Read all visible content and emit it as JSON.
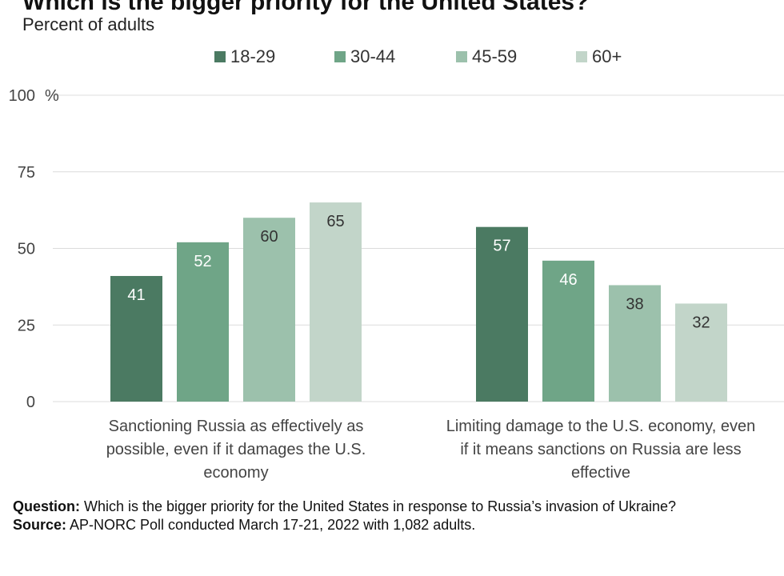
{
  "title": "Which is the bigger priority for the United States?",
  "subtitle": "Percent of adults",
  "colors": {
    "18-29": "#4b7a62",
    "30-44": "#6fa587",
    "45-59": "#9cc1ac",
    "60+": "#c2d5c9",
    "grid": "#dcdcdc",
    "axis_text": "#444444"
  },
  "chart_data": {
    "type": "bar",
    "categories": [
      "Sanctioning Russia as effectively as possible, even if it damages the U.S. economy",
      "Limiting damage to the U.S. economy, even if it means sanctions on Russia are less effective"
    ],
    "category_lines": [
      [
        "Sanctioning Russia as effectively as",
        "possible, even if it damages the U.S.",
        "economy"
      ],
      [
        "Limiting damage to the U.S. economy, even",
        "if it means sanctions on Russia are less",
        "effective"
      ]
    ],
    "series": [
      {
        "name": "18-29",
        "values": [
          41,
          57
        ]
      },
      {
        "name": "30-44",
        "values": [
          52,
          46
        ]
      },
      {
        "name": "45-59",
        "values": [
          60,
          38
        ]
      },
      {
        "name": "60+",
        "values": [
          65,
          32
        ]
      }
    ],
    "ylim": [
      0,
      100
    ],
    "yticks": [
      0,
      25,
      50,
      75,
      100
    ],
    "ytick_labels": [
      "0",
      "25",
      "50",
      "75",
      "100"
    ],
    "yunit": "%",
    "grid": true,
    "legend": "top-center"
  },
  "footer": {
    "question_label": "Question:",
    "question_text": " Which is the bigger priority for the United States in response to Russia’s invasion of Ukraine?",
    "source_label": "Source:",
    "source_text": " AP-NORC Poll conducted March 17-21, 2022 with 1,082 adults."
  }
}
